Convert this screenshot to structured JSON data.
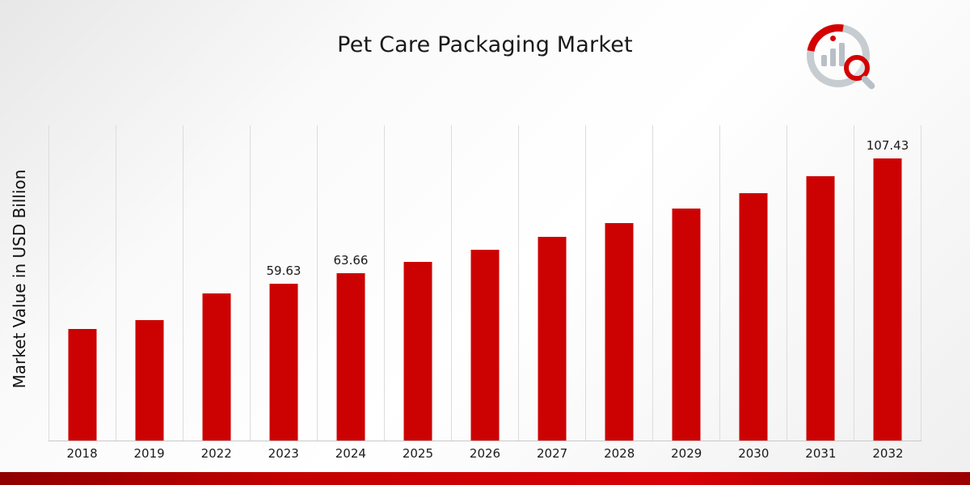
{
  "header": {
    "title": "Pet Care Packaging Market",
    "logo_icon": "bar-chart-magnifier-logo"
  },
  "chart_data": {
    "type": "bar",
    "title": "Pet Care Packaging Market",
    "xlabel": "",
    "ylabel": "Market Value in USD Billion",
    "categories": [
      "2018",
      "2019",
      "2022",
      "2023",
      "2024",
      "2025",
      "2026",
      "2027",
      "2028",
      "2029",
      "2030",
      "2031",
      "2032"
    ],
    "values": [
      42.5,
      45.9,
      56.0,
      59.63,
      63.66,
      68.0,
      72.5,
      77.5,
      82.7,
      88.3,
      94.3,
      100.7,
      107.43
    ],
    "data_labels": [
      "",
      "",
      "",
      "59.63",
      "63.66",
      "",
      "",
      "",
      "",
      "",
      "",
      "",
      "107.43"
    ],
    "ylim": [
      0,
      120
    ],
    "grid": "vertical",
    "legend": "none",
    "bar_color": "#cc0202",
    "gridline_color": "#dcdcdc",
    "axis_color": "#c9c9c9"
  },
  "footer": {
    "ribbon_color": "#c40000"
  }
}
